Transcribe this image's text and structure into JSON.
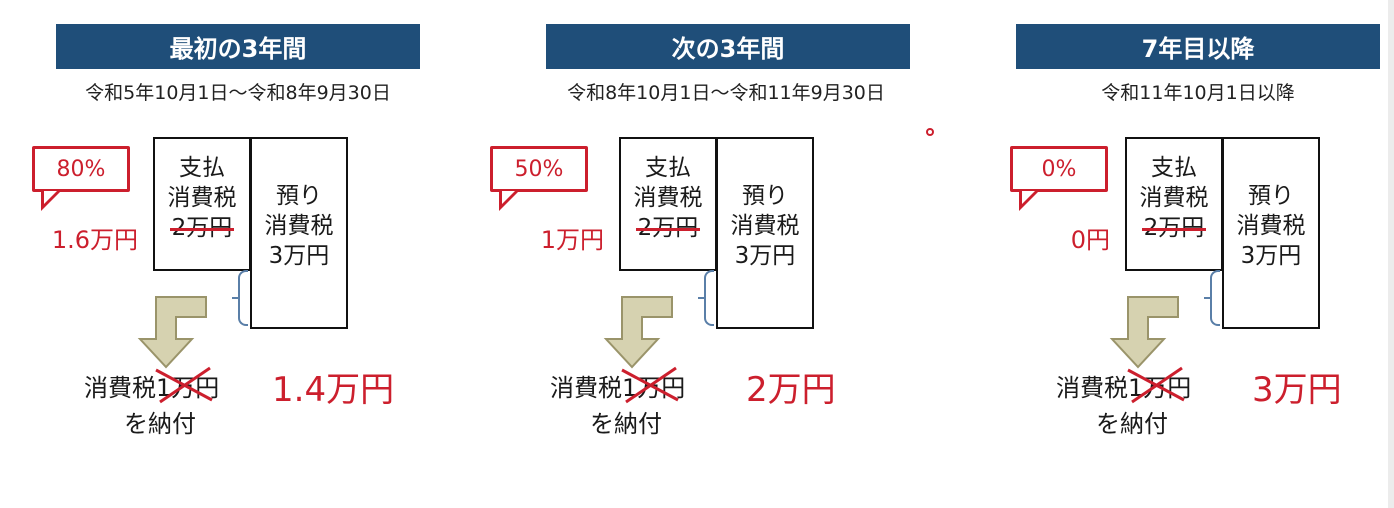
{
  "panels": [
    {
      "title": "最初の3年間",
      "period": "令和5年10月1日～令和8年9月30日",
      "rate": "80%",
      "deduction": "1.6万円",
      "paid_box": [
        "支払",
        "消費税",
        "2万円"
      ],
      "received_box": [
        "預り",
        "消費税",
        "3万円"
      ],
      "tax_prefix": "消費税",
      "tax_struck": "1万円",
      "pay_label": "を納付",
      "result": "1.4万円"
    },
    {
      "title": "次の3年間",
      "period": "令和8年10月1日～令和11年9月30日",
      "rate": "50%",
      "deduction": "1万円",
      "paid_box": [
        "支払",
        "消費税",
        "2万円"
      ],
      "received_box": [
        "預り",
        "消費税",
        "3万円"
      ],
      "tax_prefix": "消費税",
      "tax_struck": "1万円",
      "pay_label": "を納付",
      "result": "2万円"
    },
    {
      "title": "7年目以降",
      "period": "令和11年10月1日以降",
      "rate": "0%",
      "deduction": "0円",
      "paid_box": [
        "支払",
        "消費税",
        "2万円"
      ],
      "received_box": [
        "預り",
        "消費税",
        "3万円"
      ],
      "tax_prefix": "消費税",
      "tax_struck": "1万円",
      "pay_label": "を納付",
      "result": "3万円"
    }
  ],
  "colors": {
    "header": "#1f4e79",
    "accent_red": "#cc1f2d",
    "arrow": "#c9c4a0"
  },
  "icons": {
    "arrow": "bent-down-arrow-icon",
    "brace": "left-brace-icon",
    "pointer": "laser-pointer-icon"
  }
}
